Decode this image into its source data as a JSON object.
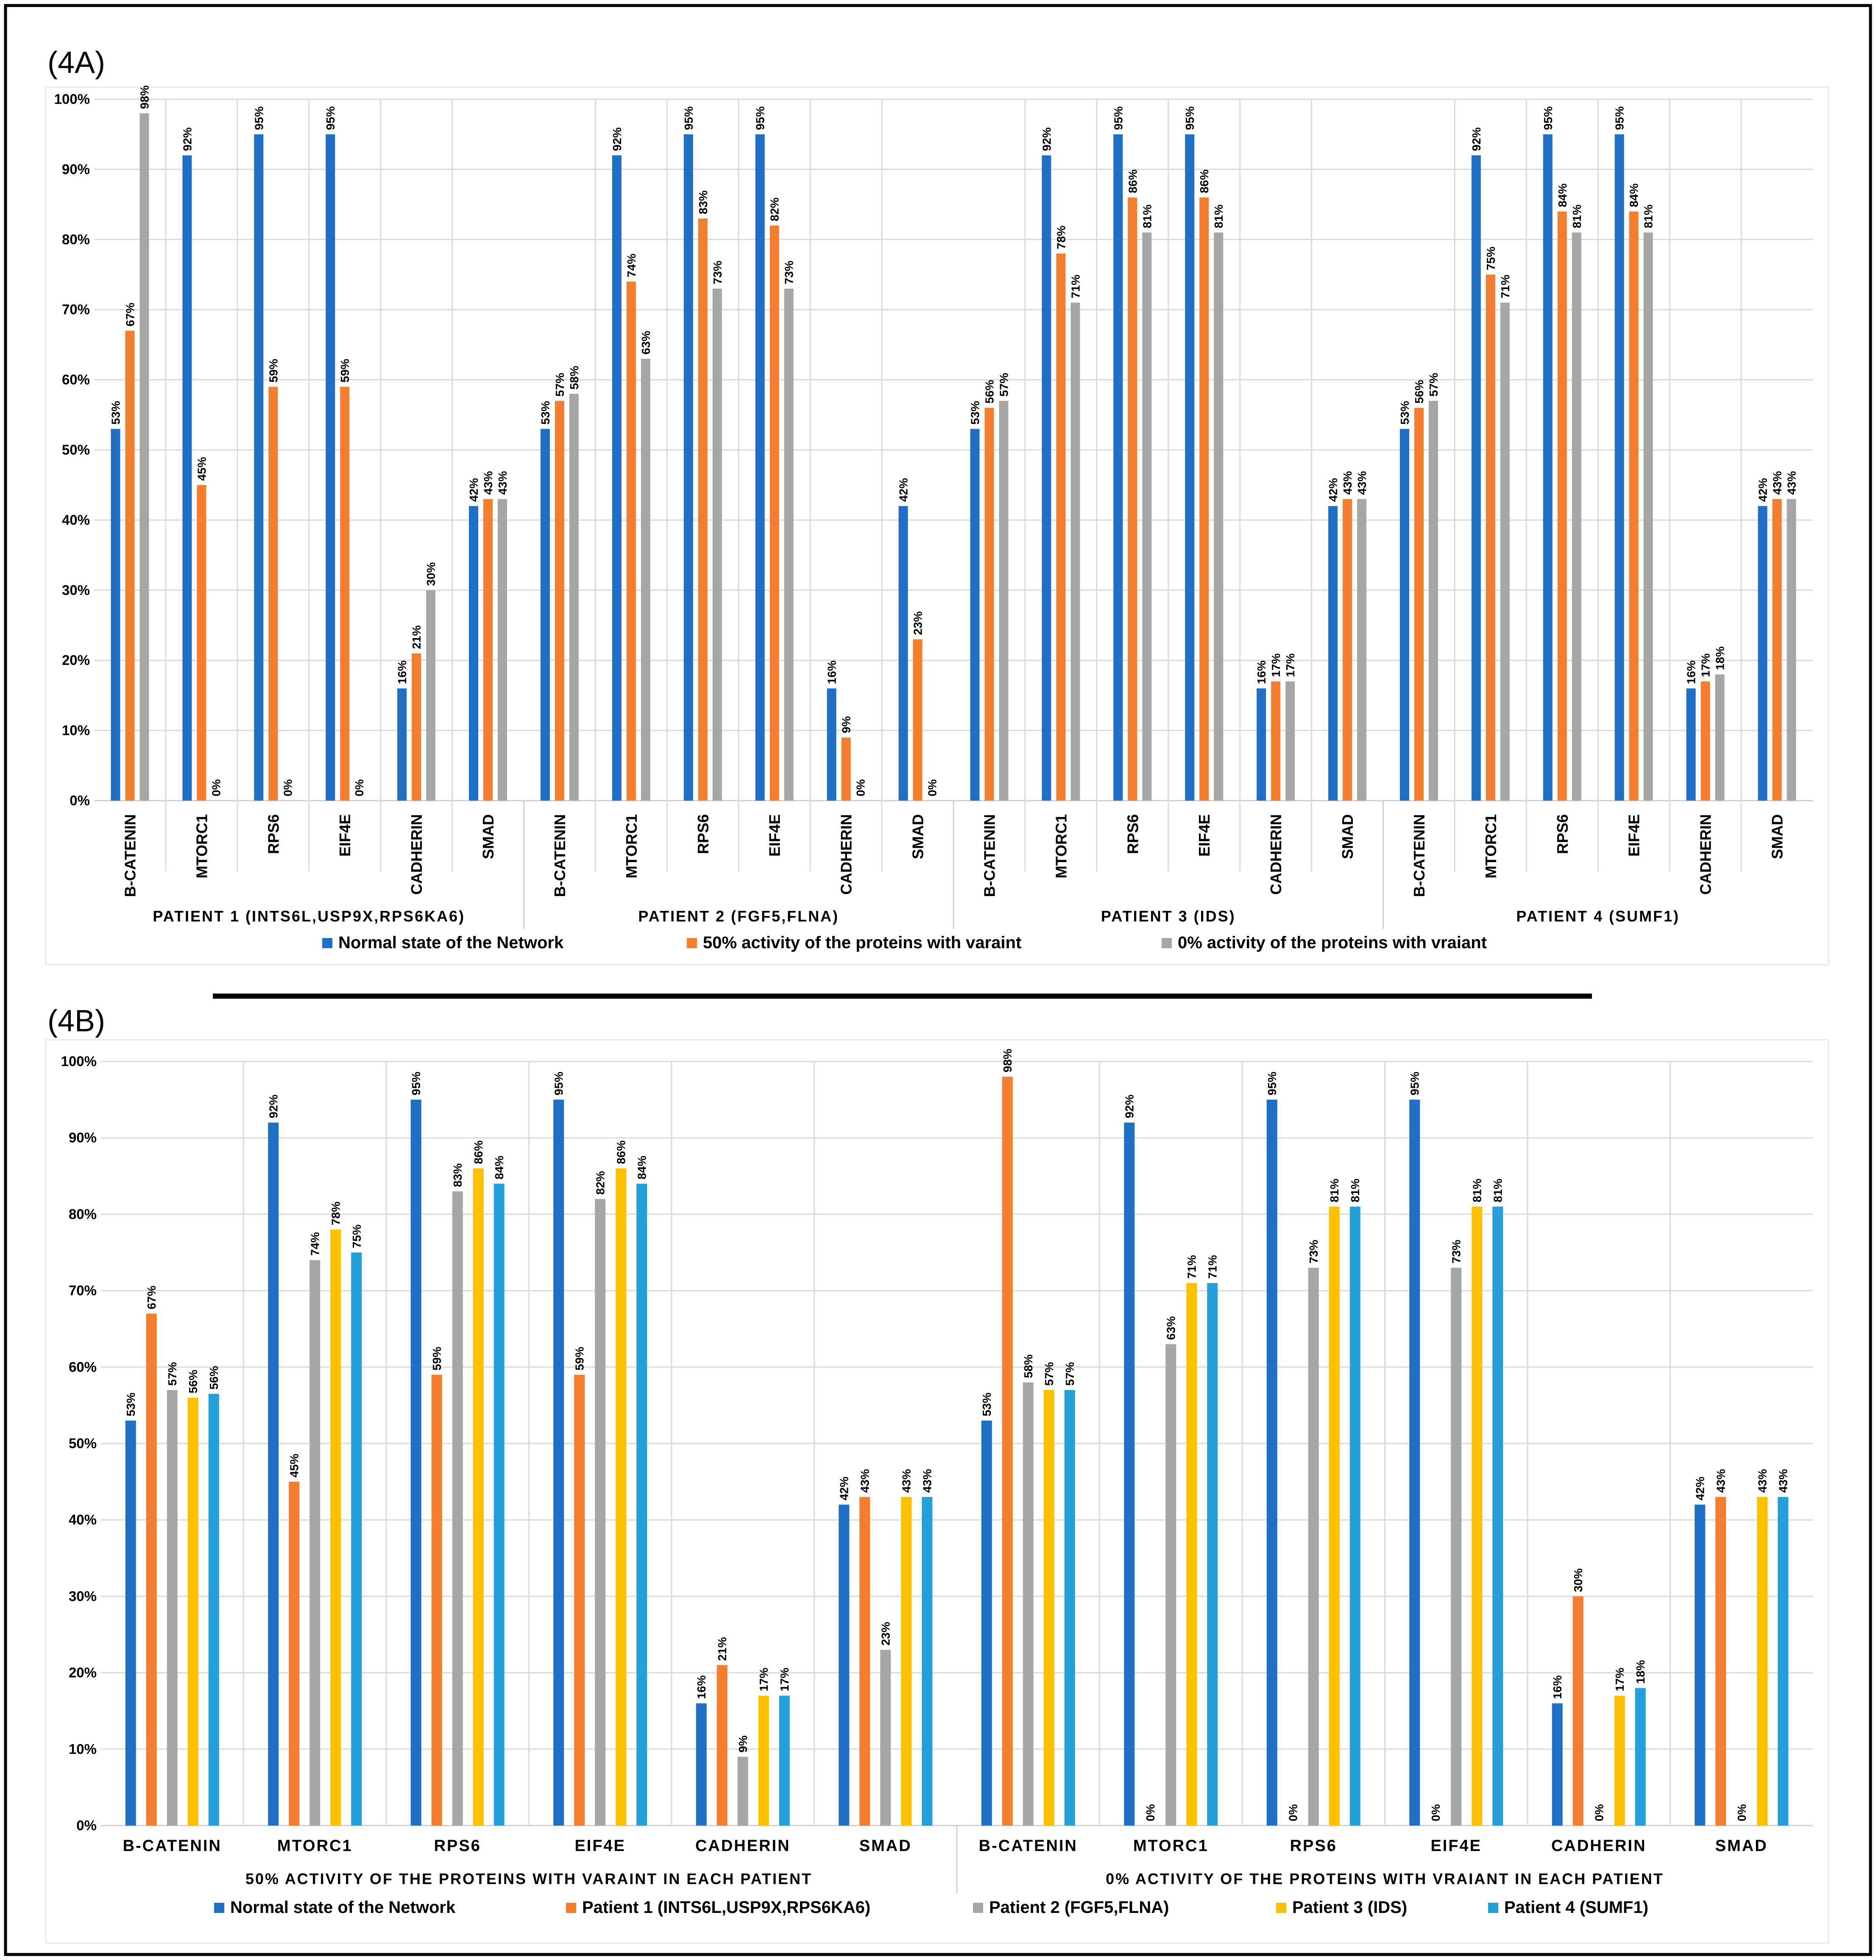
{
  "colors": {
    "normal": "#1F6FC6",
    "orange": "#F47E2E",
    "gray": "#A6A6A6",
    "yellow": "#FFC000",
    "lightblue": "#23A0DA",
    "grid": "#DADADA",
    "axis": "#CFCFCF",
    "text": "#000000"
  },
  "chart_data": [
    {
      "panel_label": "(4A)",
      "type": "bar",
      "ylim": [
        0,
        100
      ],
      "yticks": [
        "0%",
        "10%",
        "20%",
        "30%",
        "40%",
        "50%",
        "60%",
        "70%",
        "80%",
        "90%",
        "100%"
      ],
      "series": [
        {
          "name": "Normal state of the Network",
          "color_key": "normal"
        },
        {
          "name": "50% activity of the proteins with varaint",
          "color_key": "orange"
        },
        {
          "name": "0% activity of the proteins with vraiant",
          "color_key": "gray"
        }
      ],
      "groups": [
        {
          "label": "PATIENT 1 (INTS6L,USP9X,RPS6KA6)",
          "categories": [
            {
              "label": "B-CATENIN",
              "values": [
                53,
                67,
                98
              ],
              "labels": [
                "53%",
                "67%",
                "98%"
              ]
            },
            {
              "label": "MTORC1",
              "values": [
                92,
                45,
                0
              ],
              "labels": [
                "92%",
                "45%",
                "0%"
              ]
            },
            {
              "label": "RPS6",
              "values": [
                95,
                59,
                0
              ],
              "labels": [
                "95%",
                "59%",
                "0%"
              ]
            },
            {
              "label": "EIF4E",
              "values": [
                95,
                59,
                0
              ],
              "labels": [
                "95%",
                "59%",
                "0%"
              ]
            },
            {
              "label": "CADHERIN",
              "values": [
                16,
                21,
                30
              ],
              "labels": [
                "16%",
                "21%",
                "30%"
              ]
            },
            {
              "label": "SMAD",
              "values": [
                42,
                43,
                43
              ],
              "labels": [
                "42%",
                "43%",
                "43%"
              ]
            }
          ]
        },
        {
          "label": "PATIENT 2 (FGF5,FLNA)",
          "categories": [
            {
              "label": "B-CATENIN",
              "values": [
                53,
                57,
                58
              ],
              "labels": [
                "53%",
                "57%",
                "58%"
              ]
            },
            {
              "label": "MTORC1",
              "values": [
                92,
                74,
                63
              ],
              "labels": [
                "92%",
                "74%",
                "63%"
              ]
            },
            {
              "label": "RPS6",
              "values": [
                95,
                83,
                73
              ],
              "labels": [
                "95%",
                "83%",
                "73%"
              ]
            },
            {
              "label": "EIF4E",
              "values": [
                95,
                82,
                73
              ],
              "labels": [
                "95%",
                "82%",
                "73%"
              ]
            },
            {
              "label": "CADHERIN",
              "values": [
                16,
                9,
                0
              ],
              "labels": [
                "16%",
                "9%",
                "0%"
              ]
            },
            {
              "label": "SMAD",
              "values": [
                42,
                23,
                0
              ],
              "labels": [
                "42%",
                "23%",
                "0%"
              ]
            }
          ]
        },
        {
          "label": "PATIENT 3 (IDS)",
          "categories": [
            {
              "label": "B-CATENIN",
              "values": [
                53,
                56,
                57
              ],
              "labels": [
                "53%",
                "56%",
                "57%"
              ]
            },
            {
              "label": "MTORC1",
              "values": [
                92,
                78,
                71
              ],
              "labels": [
                "92%",
                "78%",
                "71%"
              ]
            },
            {
              "label": "RPS6",
              "values": [
                95,
                86,
                81
              ],
              "labels": [
                "95%",
                "86%",
                "81%"
              ]
            },
            {
              "label": "EIF4E",
              "values": [
                95,
                86,
                81
              ],
              "labels": [
                "95%",
                "86%",
                "81%"
              ]
            },
            {
              "label": "CADHERIN",
              "values": [
                16,
                17,
                17
              ],
              "labels": [
                "16%",
                "17%",
                "17%"
              ]
            },
            {
              "label": "SMAD",
              "values": [
                42,
                43,
                43
              ],
              "labels": [
                "42%",
                "43%",
                "43%"
              ]
            }
          ]
        },
        {
          "label": "PATIENT 4 (SUMF1)",
          "categories": [
            {
              "label": "B-CATENIN",
              "values": [
                53,
                56,
                57
              ],
              "labels": [
                "53%",
                "56%",
                "57%"
              ]
            },
            {
              "label": "MTORC1",
              "values": [
                92,
                75,
                71
              ],
              "labels": [
                "92%",
                "75%",
                "71%"
              ]
            },
            {
              "label": "RPS6",
              "values": [
                95,
                84,
                81
              ],
              "labels": [
                "95%",
                "84%",
                "81%"
              ]
            },
            {
              "label": "EIF4E",
              "values": [
                95,
                84,
                81
              ],
              "labels": [
                "95%",
                "84%",
                "81%"
              ]
            },
            {
              "label": "CADHERIN",
              "values": [
                16,
                17,
                18
              ],
              "labels": [
                "16%",
                "17%",
                "18%"
              ]
            },
            {
              "label": "SMAD",
              "values": [
                42,
                43,
                43
              ],
              "labels": [
                "42%",
                "43%",
                "43%"
              ]
            }
          ]
        }
      ]
    },
    {
      "panel_label": "(4B)",
      "type": "bar",
      "ylim": [
        0,
        100
      ],
      "yticks": [
        "0%",
        "10%",
        "20%",
        "30%",
        "40%",
        "50%",
        "60%",
        "70%",
        "80%",
        "90%",
        "100%"
      ],
      "series": [
        {
          "name": "Normal state of the Network",
          "color_key": "normal"
        },
        {
          "name": "Patient 1 (INTS6L,USP9X,RPS6KA6)",
          "color_key": "orange"
        },
        {
          "name": "Patient 2 (FGF5,FLNA)",
          "color_key": "gray"
        },
        {
          "name": "Patient 3 (IDS)",
          "color_key": "yellow"
        },
        {
          "name": "Patient 4 (SUMF1)",
          "color_key": "lightblue"
        }
      ],
      "groups": [
        {
          "label": "50% ACTIVITY OF THE PROTEINS WITH VARAINT IN EACH PATIENT",
          "categories": [
            {
              "label": "B-CATENIN",
              "values": [
                53,
                67,
                57,
                56,
                56.5
              ],
              "labels": [
                "53%",
                "67%",
                "57%",
                "56%",
                "56%"
              ]
            },
            {
              "label": "MTORC1",
              "values": [
                92,
                45,
                74,
                78,
                75
              ],
              "labels": [
                "92%",
                "45%",
                "74%",
                "78%",
                "75%"
              ]
            },
            {
              "label": "RPS6",
              "values": [
                95,
                59,
                83,
                86,
                84
              ],
              "labels": [
                "95%",
                "59%",
                "83%",
                "86%",
                "84%"
              ]
            },
            {
              "label": "EIF4E",
              "values": [
                95,
                59,
                82,
                86,
                84
              ],
              "labels": [
                "95%",
                "59%",
                "82%",
                "86%",
                "84%"
              ]
            },
            {
              "label": "CADHERIN",
              "values": [
                16,
                21,
                9,
                17,
                17
              ],
              "labels": [
                "16%",
                "21%",
                "9%",
                "17%",
                "17%"
              ]
            },
            {
              "label": "SMAD",
              "values": [
                42,
                43,
                23,
                43,
                43
              ],
              "labels": [
                "42%",
                "43%",
                "23%",
                "43%",
                "43%"
              ]
            }
          ]
        },
        {
          "label": "0% ACTIVITY OF THE PROTEINS WITH VRAIANT IN EACH PATIENT",
          "categories": [
            {
              "label": "B-CATENIN",
              "values": [
                53,
                98,
                58,
                57,
                57
              ],
              "labels": [
                "53%",
                "98%",
                "58%",
                "57%",
                "57%"
              ]
            },
            {
              "label": "MTORC1",
              "values": [
                92,
                null,
                63,
                71,
                71
              ],
              "labels": [
                "92%",
                "0%",
                "63%",
                "71%",
                "71%"
              ]
            },
            {
              "label": "RPS6",
              "values": [
                95,
                null,
                73,
                81,
                81
              ],
              "labels": [
                "95%",
                "0%",
                "73%",
                "81%",
                "81%"
              ]
            },
            {
              "label": "EIF4E",
              "values": [
                95,
                null,
                73,
                81,
                81
              ],
              "labels": [
                "95%",
                "0%",
                "73%",
                "81%",
                "81%"
              ]
            },
            {
              "label": "CADHERIN",
              "values": [
                16,
                30,
                null,
                17,
                18
              ],
              "labels": [
                "16%",
                "30%",
                "0%",
                "17%",
                "18%"
              ]
            },
            {
              "label": "SMAD",
              "values": [
                42,
                43,
                null,
                43,
                43
              ],
              "labels": [
                "42%",
                "43%",
                "0%",
                "43%",
                "43%"
              ]
            }
          ]
        }
      ]
    }
  ]
}
